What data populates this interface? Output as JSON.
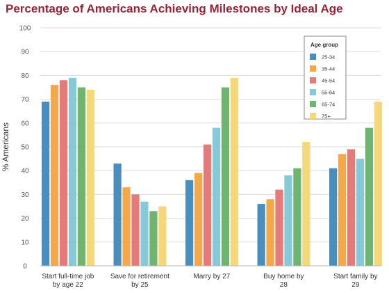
{
  "chart_data": {
    "type": "bar",
    "title": "Percentage of Americans Achieving Milestones by Ideal Age",
    "xlabel": "",
    "ylabel": "% Americans",
    "ylim": [
      0,
      100
    ],
    "yticks": [
      0,
      10,
      20,
      30,
      40,
      50,
      60,
      70,
      80,
      90,
      100
    ],
    "grid": true,
    "legend_title": "Age group",
    "legend_position": "top-right",
    "categories": [
      [
        "Start full-time job",
        "by age 22"
      ],
      [
        "Save for retirement",
        "by 25"
      ],
      [
        "Marry by 27"
      ],
      [
        "Buy home by",
        "28"
      ],
      [
        "Start family by",
        "29"
      ]
    ],
    "series": [
      {
        "name": "25-34",
        "color": "#4a8dbf",
        "values": [
          69,
          43,
          36,
          26,
          41
        ]
      },
      {
        "name": "35-44",
        "color": "#f5a84a",
        "values": [
          76,
          33,
          39,
          28,
          47
        ]
      },
      {
        "name": "45-54",
        "color": "#e57a78",
        "values": [
          78,
          30,
          51,
          32,
          49
        ]
      },
      {
        "name": "55-64",
        "color": "#86cad8",
        "values": [
          79,
          27,
          58,
          38,
          45
        ]
      },
      {
        "name": "65-74",
        "color": "#6fb46f",
        "values": [
          75,
          23,
          75,
          41,
          58
        ]
      },
      {
        "name": "75+",
        "color": "#f6d77a",
        "values": [
          74,
          25,
          79,
          52,
          69
        ]
      }
    ]
  }
}
